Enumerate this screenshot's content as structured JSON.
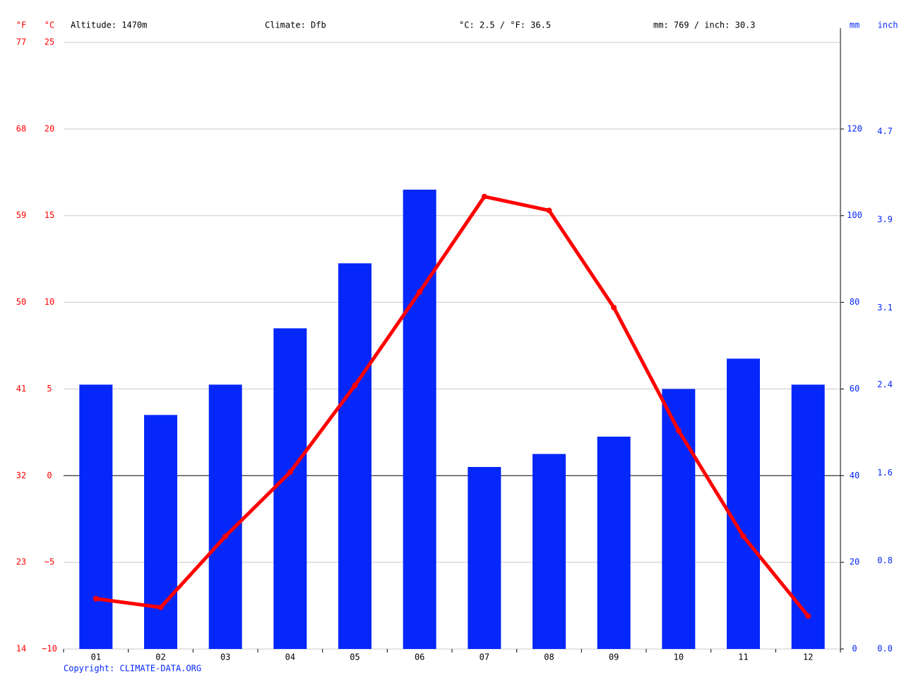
{
  "chart_data": {
    "type": "climate",
    "altitude": "Altitude: 1470m",
    "climate": "Climate: Dfb",
    "mean_temperature": "°C: 2.5 / °F: 36.5",
    "annual_precipitation": "mm: 769 / inch: 30.3",
    "copyright": "Copyright: CLIMATE-DATA.ORG",
    "y_label": "°C",
    "yf_label": "°F",
    "y2_label": "mm",
    "y3_label": "inch",
    "categories": [
      "01",
      "02",
      "03",
      "04",
      "05",
      "06",
      "07",
      "08",
      "09",
      "10",
      "11",
      "12"
    ],
    "series": [
      {
        "kind": "bar",
        "axis": "y2",
        "color": "#0527fa",
        "values": [
          61,
          54,
          61,
          74,
          89,
          106,
          42,
          45,
          49,
          60,
          67,
          61
        ]
      },
      {
        "kind": "line",
        "axis": "y",
        "color": "#ff0000",
        "values": [
          -7.1,
          -7.6,
          -3.5,
          0.2,
          5.2,
          10.6,
          16.1,
          15.3,
          9.7,
          2.6,
          -3.5,
          -8.1
        ]
      }
    ],
    "ylim": [
      -10,
      25
    ],
    "yticks": [
      {
        "value": -10,
        "label": "−10"
      },
      {
        "value": -5,
        "label": "−5"
      },
      0,
      5,
      10,
      15,
      20,
      25
    ],
    "yflim": [
      14,
      77
    ],
    "yfticks": [
      14,
      23,
      32,
      41,
      50,
      59,
      68,
      77
    ],
    "y2lim": [
      0,
      140
    ],
    "y2ticks": [
      0,
      20,
      40,
      60,
      80,
      100,
      120
    ],
    "y3lim": [
      0,
      5.512
    ],
    "y3ticks": [
      {
        "value": 0,
        "label": "0.0"
      },
      0.8,
      1.6,
      2.4,
      3.1,
      3.9,
      4.7
    ],
    "grid": true
  }
}
